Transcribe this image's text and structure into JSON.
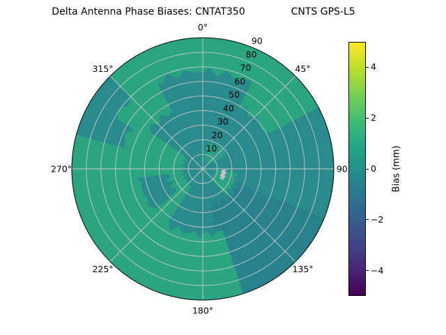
{
  "title": {
    "left": "Delta Antenna Phase Biases: CNTAT350",
    "right": "CNTS GPS-L5"
  },
  "chart_data": {
    "type": "heatmap",
    "projection": "polar",
    "title": "Delta Antenna Phase Biases: CNTAT350    CNTS GPS-L5",
    "theta_convention": "degrees clockwise from top (north)",
    "theta_zero": "top",
    "theta_direction": "clockwise",
    "theta_tick_deg": [
      0,
      45,
      90,
      135,
      180,
      225,
      270,
      315
    ],
    "theta_tick_labels": [
      "0°",
      "45°",
      "90°",
      "135°",
      "180°",
      "225°",
      "270°",
      "315°"
    ],
    "r_ticks": [
      10,
      20,
      30,
      40,
      50,
      60,
      70,
      80,
      90
    ],
    "r_tick_labels": [
      "10",
      "20",
      "30",
      "40",
      "50",
      "60",
      "70",
      "80",
      "90"
    ],
    "r_max": 90,
    "r_label_angle_deg": 23,
    "grid": {
      "show": true,
      "color": "#c9c9c9"
    },
    "base": {
      "bias_mm": 0.2,
      "color": "#2a8b8d"
    },
    "regions": [
      {
        "name": "top-outer-band",
        "theta0": -45,
        "theta1": 38,
        "r0": 67,
        "r1": 90,
        "bias_mm": 0.9,
        "color": "#2ba581"
      },
      {
        "name": "upper-right",
        "theta0": 30,
        "theta1": 62,
        "r0": 50,
        "r1": 90,
        "bias_mm": 0.9,
        "color": "#2ba581"
      },
      {
        "name": "lower-right-dark",
        "theta0": 112,
        "theta1": 168,
        "r0": 26,
        "r1": 90,
        "bias_mm": -0.3,
        "color": "#27828e"
      },
      {
        "name": "bottom",
        "theta0": 162,
        "theta1": 213,
        "r0": 45,
        "r1": 90,
        "bias_mm": 0.9,
        "color": "#2ba581"
      },
      {
        "name": "left-large",
        "theta0": 213,
        "theta1": 305,
        "r0": 14,
        "r1": 90,
        "bias_mm": 0.9,
        "color": "#2ba581"
      },
      {
        "name": "upper-left-outer-hole",
        "theta0": 285,
        "theta1": 312,
        "r0": 57,
        "r1": 90,
        "bias_mm": 0.2,
        "color": "#2a8b8d"
      },
      {
        "name": "left-inner-hole",
        "theta0": 230,
        "theta1": 262,
        "r0": 24,
        "r1": 44,
        "bias_mm": 0.2,
        "color": "#2a8b8d"
      },
      {
        "name": "upper-left-mid",
        "theta0": 300,
        "theta1": 332,
        "r0": 45,
        "r1": 69,
        "bias_mm": 0.8,
        "color": "#2ba581"
      },
      {
        "name": "center-upper-right",
        "theta0": 10,
        "theta1": 60,
        "r0": 6,
        "r1": 19,
        "bias_mm": 0.7,
        "color": "#2b9f85"
      },
      {
        "name": "center-right",
        "theta0": 95,
        "theta1": 140,
        "r0": 9,
        "r1": 23,
        "bias_mm": 0.8,
        "color": "#2ba581"
      },
      {
        "name": "center-streak",
        "theta0": 92,
        "theta1": 118,
        "r0": 13,
        "r1": 16,
        "bias_mm": 2.5,
        "color": "#c8c0cc"
      }
    ],
    "colorbar": {
      "label": "Bias (mm)",
      "min": -5,
      "max": 5,
      "tick_values": [
        4,
        2,
        0,
        -2,
        -4
      ],
      "tick_labels": [
        "4",
        "2",
        "0",
        "−2",
        "−4"
      ],
      "colormap": "viridis",
      "stops": [
        {
          "v": -5,
          "c": "#440154"
        },
        {
          "v": -4,
          "c": "#482475"
        },
        {
          "v": -3,
          "c": "#414487"
        },
        {
          "v": -2,
          "c": "#355f8d"
        },
        {
          "v": -1,
          "c": "#2a788e"
        },
        {
          "v": 0,
          "c": "#21918c"
        },
        {
          "v": 1,
          "c": "#22a884"
        },
        {
          "v": 2,
          "c": "#44bf70"
        },
        {
          "v": 3,
          "c": "#7ad151"
        },
        {
          "v": 4,
          "c": "#bddf26"
        },
        {
          "v": 5,
          "c": "#fde725"
        }
      ]
    }
  }
}
